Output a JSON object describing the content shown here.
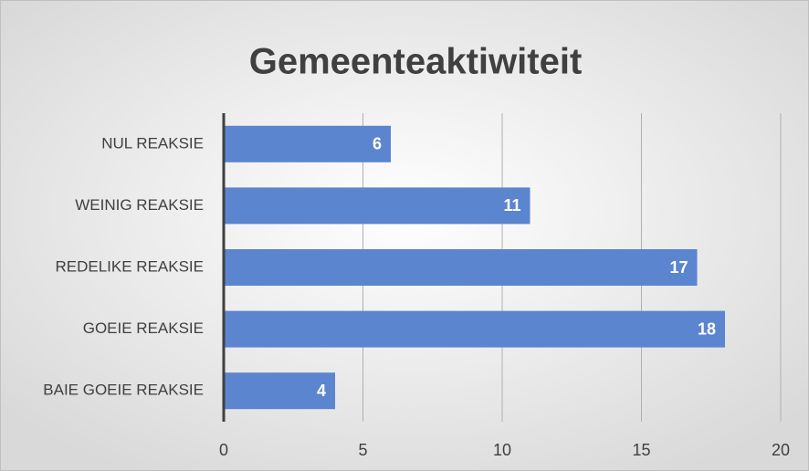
{
  "chart_data": {
    "type": "barh",
    "title": "Gemeenteaktiwiteit",
    "categories": [
      "NUL REAKSIE",
      "WEINIG REAKSIE",
      "REDELIKE REAKSIE",
      "GOEIE REAKSIE",
      "BAIE GOEIE REAKSIE"
    ],
    "values": [
      6,
      11,
      17,
      18,
      4
    ],
    "color": "#5b85cf",
    "xlim": [
      0,
      20
    ],
    "xticks": [
      0,
      5,
      10,
      15,
      20
    ],
    "grid": true
  }
}
